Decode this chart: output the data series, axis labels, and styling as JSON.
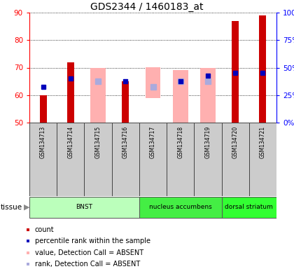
{
  "title": "GDS2344 / 1460183_at",
  "samples": [
    "GSM134713",
    "GSM134714",
    "GSM134715",
    "GSM134716",
    "GSM134717",
    "GSM134718",
    "GSM134719",
    "GSM134720",
    "GSM134721"
  ],
  "tissues": [
    {
      "name": "BNST",
      "start": 0,
      "end": 4,
      "color": "#ccffcc"
    },
    {
      "name": "nucleus accumbens",
      "start": 4,
      "end": 7,
      "color": "#55ee55"
    },
    {
      "name": "dorsal striatum",
      "start": 7,
      "end": 9,
      "color": "#33ff33"
    }
  ],
  "red_bars_top": [
    60,
    72,
    null,
    65,
    null,
    null,
    null,
    87,
    89
  ],
  "pink_bars_bottom": [
    null,
    null,
    50,
    null,
    59,
    50,
    50,
    null,
    null
  ],
  "pink_bars_top": [
    null,
    null,
    70,
    null,
    70,
    69,
    70,
    null,
    null
  ],
  "blue_squares": [
    63,
    66,
    null,
    65,
    null,
    65,
    67,
    68,
    68
  ],
  "lavender_squares": [
    null,
    null,
    65,
    null,
    63,
    65,
    65,
    null,
    null
  ],
  "ylim_left": [
    50,
    90
  ],
  "ylim_right": [
    0,
    100
  ],
  "yticks_left": [
    50,
    60,
    70,
    80,
    90
  ],
  "yticks_right": [
    0,
    25,
    50,
    75,
    100
  ],
  "ytick_labels_right": [
    "0%",
    "25%",
    "50%",
    "75%",
    "100%"
  ],
  "red_color": "#cc0000",
  "pink_color": "#ffb0b0",
  "blue_color": "#0000bb",
  "lavender_color": "#aaaadd",
  "sample_box_color": "#cccccc",
  "legend_items": [
    {
      "color": "#cc0000",
      "label": "count"
    },
    {
      "color": "#0000bb",
      "label": "percentile rank within the sample"
    },
    {
      "color": "#ffb0b0",
      "label": "value, Detection Call = ABSENT"
    },
    {
      "color": "#aaaadd",
      "label": "rank, Detection Call = ABSENT"
    }
  ]
}
